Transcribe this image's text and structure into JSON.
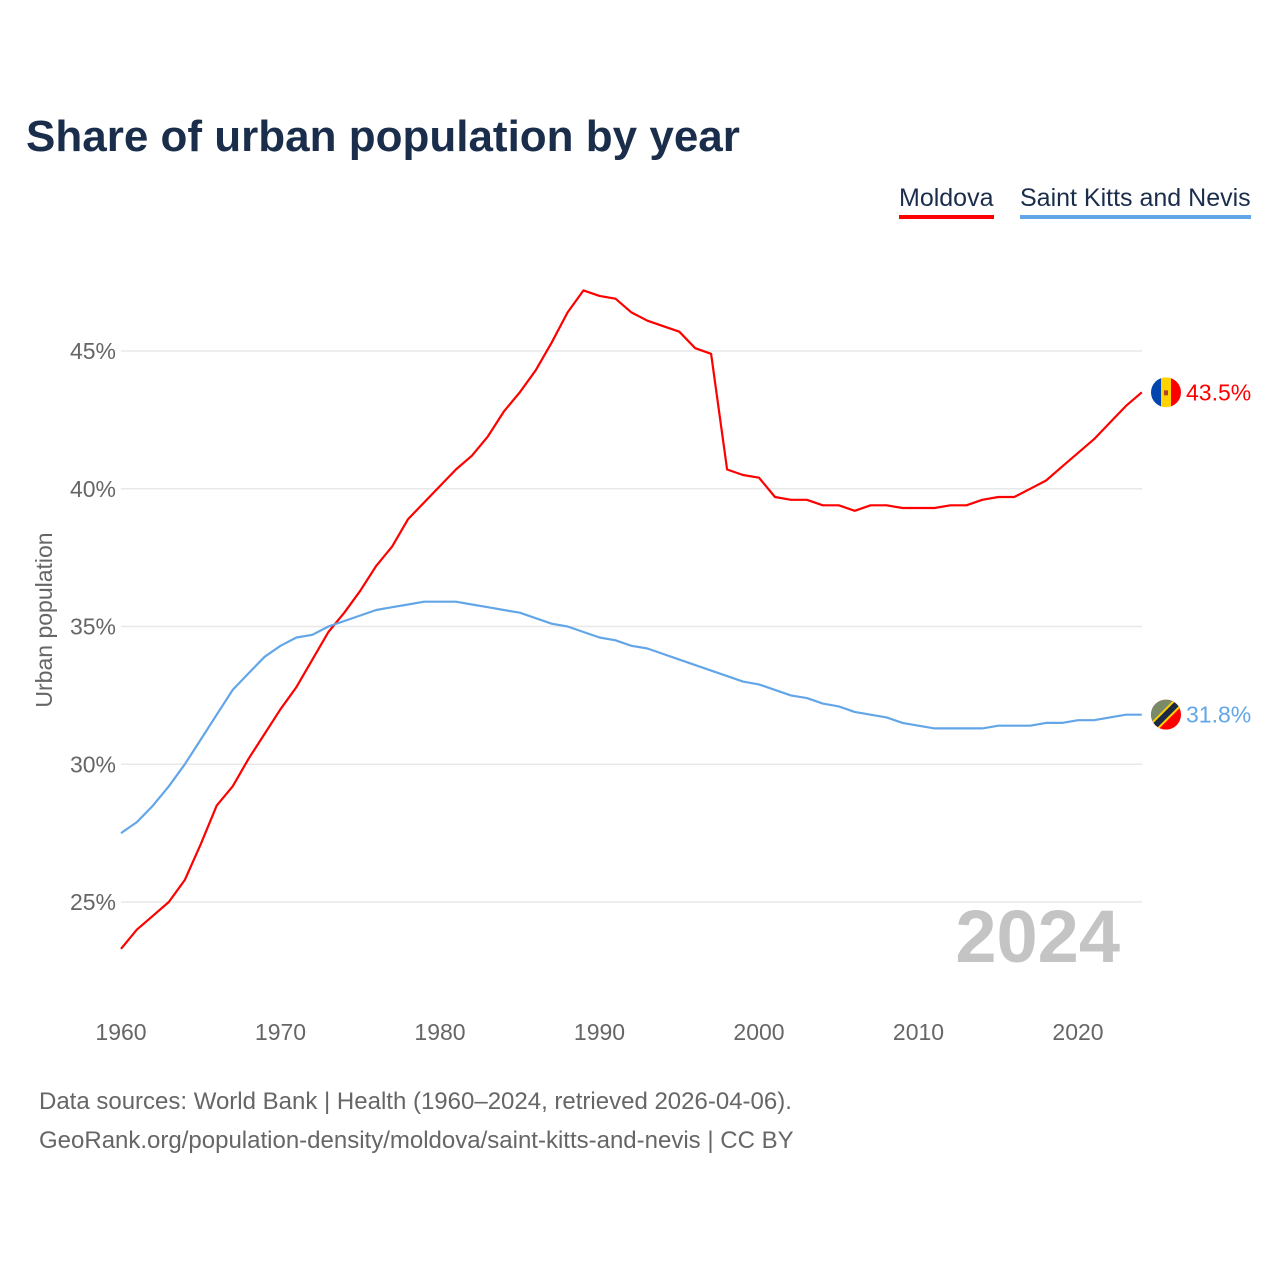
{
  "chart_data": {
    "type": "line",
    "title": "Share of urban population by year",
    "xlabel": "",
    "ylabel": "Urban population",
    "xlim": [
      1960,
      2024
    ],
    "ylim": [
      22,
      48
    ],
    "xticks": [
      1960,
      1970,
      1980,
      1990,
      2000,
      2010,
      2020
    ],
    "yticks": [
      25,
      30,
      35,
      40,
      45
    ],
    "ytick_labels": [
      "25%",
      "30%",
      "35%",
      "40%",
      "45%"
    ],
    "grid": true,
    "legend_position": "top-right",
    "year_watermark": "2024",
    "x": [
      1960,
      1961,
      1962,
      1963,
      1964,
      1965,
      1966,
      1967,
      1968,
      1969,
      1970,
      1971,
      1972,
      1973,
      1974,
      1975,
      1976,
      1977,
      1978,
      1979,
      1980,
      1981,
      1982,
      1983,
      1984,
      1985,
      1986,
      1987,
      1988,
      1989,
      1990,
      1991,
      1992,
      1993,
      1994,
      1995,
      1996,
      1997,
      1998,
      1999,
      2000,
      2001,
      2002,
      2003,
      2004,
      2005,
      2006,
      2007,
      2008,
      2009,
      2010,
      2011,
      2012,
      2013,
      2014,
      2015,
      2016,
      2017,
      2018,
      2019,
      2020,
      2021,
      2022,
      2023,
      2024
    ],
    "series": [
      {
        "name": "Moldova",
        "color": "#ff0000",
        "end_label": "43.5%",
        "flag": "moldova-flag",
        "values": [
          23.3,
          24.0,
          24.5,
          25.0,
          25.8,
          27.1,
          28.5,
          29.2,
          30.2,
          31.1,
          32.0,
          32.8,
          33.8,
          34.8,
          35.5,
          36.3,
          37.2,
          37.9,
          38.9,
          39.5,
          40.1,
          40.7,
          41.2,
          41.9,
          42.8,
          43.5,
          44.3,
          45.3,
          46.4,
          47.2,
          47.0,
          46.9,
          46.4,
          46.1,
          45.9,
          45.7,
          45.1,
          44.9,
          40.7,
          40.5,
          40.4,
          39.7,
          39.6,
          39.6,
          39.4,
          39.4,
          39.2,
          39.4,
          39.4,
          39.3,
          39.3,
          39.3,
          39.4,
          39.4,
          39.6,
          39.7,
          39.7,
          40.0,
          40.3,
          40.8,
          41.3,
          41.8,
          42.4,
          43.0,
          43.5
        ]
      },
      {
        "name": "Saint Kitts and Nevis",
        "color": "#63a6e8",
        "end_label": "31.8%",
        "flag": "saint-kitts-and-nevis-flag",
        "values": [
          27.5,
          27.9,
          28.5,
          29.2,
          30.0,
          30.9,
          31.8,
          32.7,
          33.3,
          33.9,
          34.3,
          34.6,
          34.7,
          35.0,
          35.2,
          35.4,
          35.6,
          35.7,
          35.8,
          35.9,
          35.9,
          35.9,
          35.8,
          35.7,
          35.6,
          35.5,
          35.3,
          35.1,
          35.0,
          34.8,
          34.6,
          34.5,
          34.3,
          34.2,
          34.0,
          33.8,
          33.6,
          33.4,
          33.2,
          33.0,
          32.9,
          32.7,
          32.5,
          32.4,
          32.2,
          32.1,
          31.9,
          31.8,
          31.7,
          31.5,
          31.4,
          31.3,
          31.3,
          31.3,
          31.3,
          31.4,
          31.4,
          31.4,
          31.5,
          31.5,
          31.6,
          31.6,
          31.7,
          31.8,
          31.8
        ]
      }
    ]
  },
  "footer": {
    "line1": "Data sources: World Bank | Health (1960–2024, retrieved 2026-04-06).",
    "line2": "GeoRank.org/population-density/moldova/saint-kitts-and-nevis | CC BY"
  }
}
